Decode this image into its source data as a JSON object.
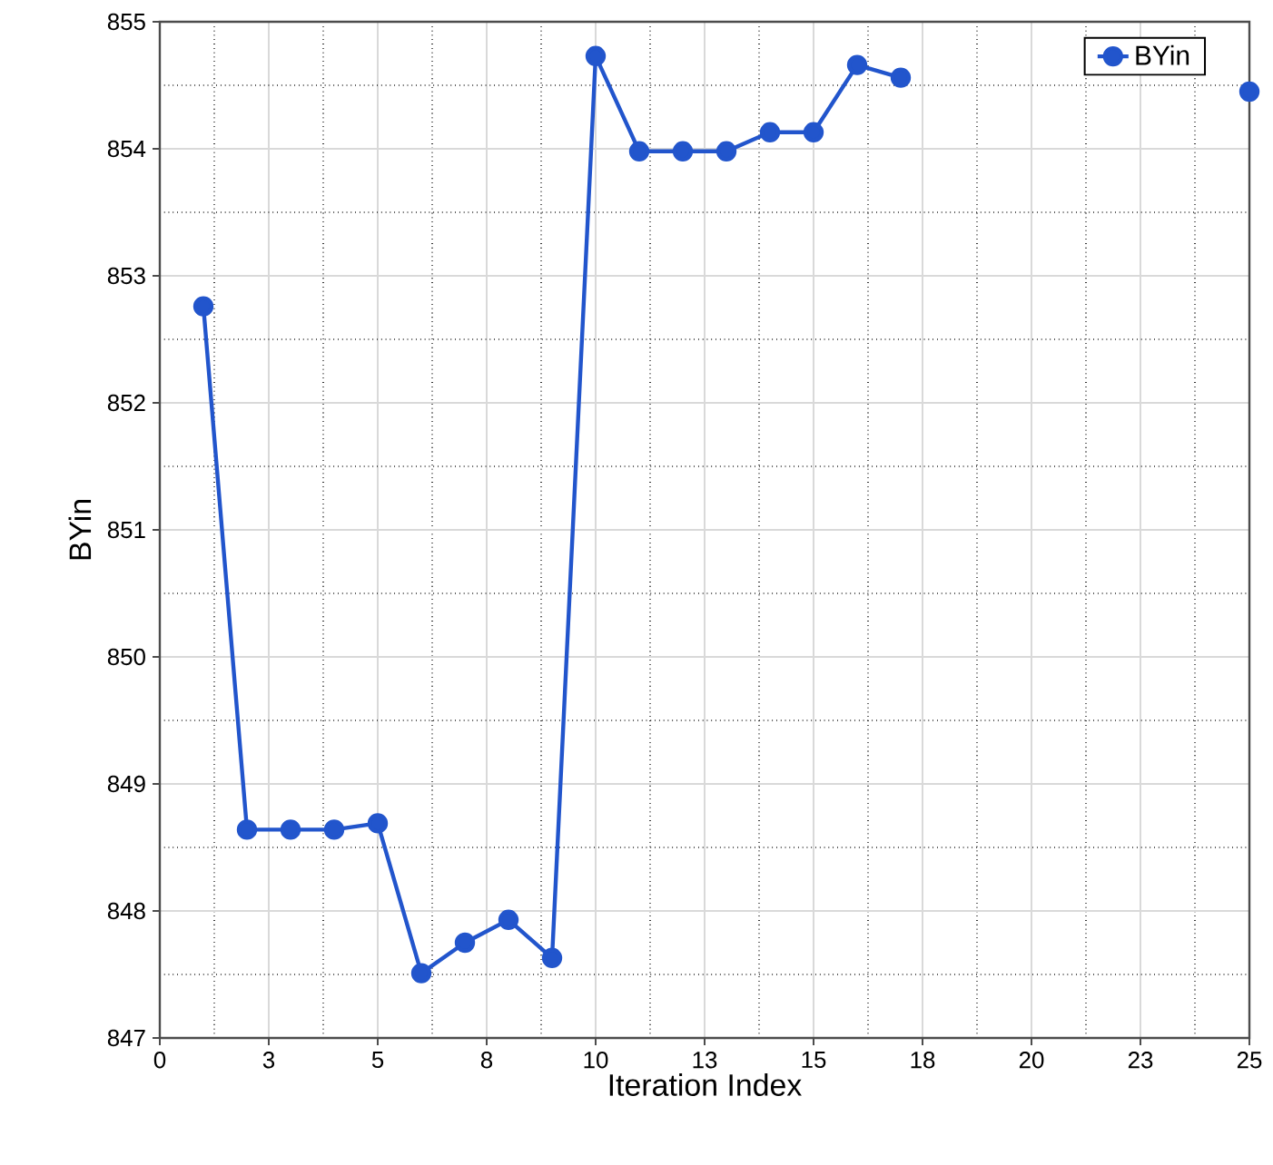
{
  "chart_data": {
    "type": "line",
    "xlabel": "Iteration Index",
    "ylabel": "BYin",
    "x": [
      1,
      2,
      3,
      4,
      5,
      6,
      7,
      8,
      9,
      10,
      11,
      12,
      13,
      14,
      15,
      16,
      17,
      18,
      19,
      20,
      21,
      22,
      23,
      24,
      25
    ],
    "series": [
      {
        "name": "BYin",
        "color": "#2255cc",
        "values": [
          852.76,
          848.64,
          848.64,
          848.64,
          848.69,
          847.51,
          847.75,
          847.93,
          847.63,
          854.73,
          853.98,
          853.98,
          853.98,
          854.13,
          854.13,
          854.66,
          854.56,
          null,
          null,
          null,
          null,
          null,
          null,
          null,
          854.45
        ]
      }
    ],
    "xlim": [
      0,
      25
    ],
    "xticks": [
      0,
      {
        "value": 2.5,
        "label": "3"
      },
      5,
      {
        "value": 7.5,
        "label": "8"
      },
      10,
      {
        "value": 12.5,
        "label": "13"
      },
      15,
      {
        "value": 17.5,
        "label": "18"
      },
      20,
      {
        "value": 22.5,
        "label": "23"
      },
      25
    ],
    "ylim": [
      847,
      855
    ],
    "yticks": [
      847,
      848,
      849,
      850,
      851,
      852,
      853,
      854,
      855
    ],
    "grid": true,
    "legend": "top right",
    "marker": "circle",
    "line_style": "solid"
  }
}
